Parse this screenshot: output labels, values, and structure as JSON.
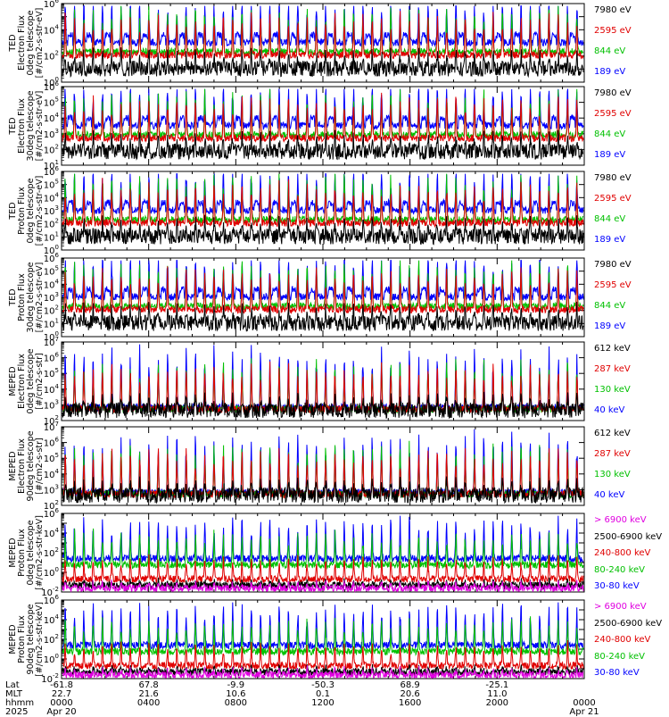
{
  "chart_data": {
    "type": "line",
    "panels": [
      {
        "ylabel": [
          "TED",
          "Electron Flux",
          "0deg telescope",
          "[#/cm2-s-str-eV]"
        ],
        "yticks": [
          "10^6",
          "10^4",
          "10^2",
          "10^0"
        ],
        "ymin_exp": 0,
        "ymax_exp": 6,
        "legend": [
          {
            "label": "7980 eV",
            "color": "#000000"
          },
          {
            "label": "2595 eV",
            "color": "#e00000"
          },
          {
            "label": "844 eV",
            "color": "#00c000"
          },
          {
            "label": "189 eV",
            "color": "#0000ff"
          }
        ]
      },
      {
        "ylabel": [
          "TED",
          "Electron Flux",
          "30deg telescope",
          "[#/cm2-s-str-eV]"
        ],
        "yticks": [
          "10^6",
          "10^5",
          "10^4",
          "10^3",
          "10^2",
          "10^1"
        ],
        "ymin_exp": 1,
        "ymax_exp": 6,
        "legend": [
          {
            "label": "7980 eV",
            "color": "#000000"
          },
          {
            "label": "2595 eV",
            "color": "#e00000"
          },
          {
            "label": "844 eV",
            "color": "#00c000"
          },
          {
            "label": "189 eV",
            "color": "#0000ff"
          }
        ]
      },
      {
        "ylabel": [
          "TED",
          "Proton Flux",
          "0deg telescope",
          "[#/cm2-s-str-eV]"
        ],
        "yticks": [
          "10^6",
          "10^5",
          "10^4",
          "10^3",
          "10^2",
          "10^1",
          "10^0"
        ],
        "ymin_exp": 0,
        "ymax_exp": 6,
        "legend": [
          {
            "label": "7980 eV",
            "color": "#000000"
          },
          {
            "label": "2595 eV",
            "color": "#e00000"
          },
          {
            "label": "844 eV",
            "color": "#00c000"
          },
          {
            "label": "189 eV",
            "color": "#0000ff"
          }
        ]
      },
      {
        "ylabel": [
          "TED",
          "Proton Flux",
          "30deg telescope",
          "[#/cm2-s-str-eV]"
        ],
        "yticks": [
          "10^6",
          "10^5",
          "10^4",
          "10^3",
          "10^2",
          "10^1",
          "10^0"
        ],
        "ymin_exp": 0,
        "ymax_exp": 6,
        "legend": [
          {
            "label": "7980 eV",
            "color": "#000000"
          },
          {
            "label": "2595 eV",
            "color": "#e00000"
          },
          {
            "label": "844 eV",
            "color": "#00c000"
          },
          {
            "label": "189 eV",
            "color": "#0000ff"
          }
        ]
      },
      {
        "ylabel": [
          "MEPED",
          "Electron Flux",
          "0deg telescope",
          "[#/cm2-s-str]"
        ],
        "yticks": [
          "10^7",
          "10^6",
          "10^5",
          "10^4",
          "10^3",
          "10^2"
        ],
        "ymin_exp": 2,
        "ymax_exp": 7,
        "legend": [
          {
            "label": "612 keV",
            "color": "#000000"
          },
          {
            "label": "287 keV",
            "color": "#e00000"
          },
          {
            "label": "130 keV",
            "color": "#00c000"
          },
          {
            "label": "40 keV",
            "color": "#0000ff"
          }
        ]
      },
      {
        "ylabel": [
          "MEPED",
          "Electron Flux",
          "90deg telescope",
          "[#/cm2-s-str]"
        ],
        "yticks": [
          "10^7",
          "10^6",
          "10^5",
          "10^4",
          "10^3",
          "10^2"
        ],
        "ymin_exp": 2,
        "ymax_exp": 7,
        "legend": [
          {
            "label": "612 keV",
            "color": "#000000"
          },
          {
            "label": "287 keV",
            "color": "#e00000"
          },
          {
            "label": "130 keV",
            "color": "#00c000"
          },
          {
            "label": "40 keV",
            "color": "#0000ff"
          }
        ]
      },
      {
        "ylabel": [
          "MEPED",
          "Proton Flux",
          "0deg telescope",
          "[#/cm2-s-str-keV]"
        ],
        "yticks": [
          "10^6",
          "10^4",
          "10^2",
          "10^0",
          "10^-2"
        ],
        "ymin_exp": -2,
        "ymax_exp": 6,
        "legend": [
          {
            "label": "> 6900 keV",
            "color": "#e000e0"
          },
          {
            "label": "2500-6900 keV",
            "color": "#000000"
          },
          {
            "label": "240-800 keV",
            "color": "#e00000"
          },
          {
            "label": "80-240 keV",
            "color": "#00c000"
          },
          {
            "label": "30-80 keV",
            "color": "#0000ff"
          }
        ]
      },
      {
        "ylabel": [
          "MEPED",
          "Proton Flux",
          "90deg telescope",
          "[#/cm2-s-str-keV]"
        ],
        "yticks": [
          "10^6",
          "10^4",
          "10^2",
          "10^0",
          "10^-2"
        ],
        "ymin_exp": -2,
        "ymax_exp": 6,
        "legend": [
          {
            "label": "> 6900 keV",
            "color": "#e000e0"
          },
          {
            "label": "2500-6900 keV",
            "color": "#000000"
          },
          {
            "label": "240-800 keV",
            "color": "#e00000"
          },
          {
            "label": "80-240 keV",
            "color": "#00c000"
          },
          {
            "label": "30-80 keV",
            "color": "#0000ff"
          }
        ]
      }
    ],
    "x_axis": {
      "row_labels": [
        "Lat",
        "MLT",
        "hhmm",
        "2025"
      ],
      "columns": [
        {
          "lat": "-61.8",
          "mlt": "22.7",
          "hhmm": "0000",
          "date": "Apr 20"
        },
        {
          "lat": "67.8",
          "mlt": "21.6",
          "hhmm": "0400",
          "date": ""
        },
        {
          "lat": "-9.9",
          "mlt": "10.6",
          "hhmm": "0800",
          "date": ""
        },
        {
          "lat": "-50.3",
          "mlt": "0.1",
          "hhmm": "1200",
          "date": ""
        },
        {
          "lat": "68.9",
          "mlt": "20.6",
          "hhmm": "1600",
          "date": ""
        },
        {
          "lat": "-25.1",
          "mlt": "11.0",
          "hhmm": "2000",
          "date": ""
        },
        {
          "lat": "",
          "mlt": "",
          "hhmm": "0000",
          "date": "Apr 21"
        }
      ]
    },
    "colors": {
      "black": "#000000",
      "red": "#e00000",
      "green": "#00c000",
      "blue": "#0000ff",
      "magenta": "#e000e0"
    }
  }
}
